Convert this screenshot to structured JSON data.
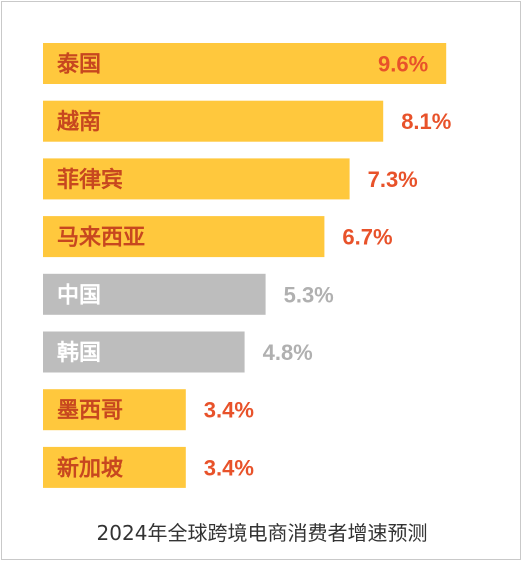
{
  "chart_data": {
    "type": "bar",
    "orientation": "horizontal",
    "categories": [
      "泰国",
      "越南",
      "菲律宾",
      "马来西亚",
      "中国",
      "韩国",
      "墨西哥",
      "新加坡"
    ],
    "values": [
      9.6,
      8.1,
      7.3,
      6.7,
      5.3,
      4.8,
      3.4,
      3.4
    ],
    "value_labels": [
      "9.6%",
      "8.1%",
      "7.3%",
      "6.7%",
      "5.3%",
      "4.8%",
      "3.4%",
      "3.4%"
    ],
    "highlight": [
      true,
      true,
      true,
      true,
      false,
      false,
      true,
      true
    ],
    "title": "2024年全球跨境电商消费者增速预测",
    "xlim": [
      0,
      10
    ],
    "grid": false,
    "legend": "none"
  },
  "colors": {
    "highlight_bar": "#FFC83D",
    "muted_bar": "#BDBDBD",
    "highlight_label": "#E8522A",
    "muted_label": "#B0B0B0",
    "category_text": "#C7471F",
    "caption_text": "#333333"
  }
}
